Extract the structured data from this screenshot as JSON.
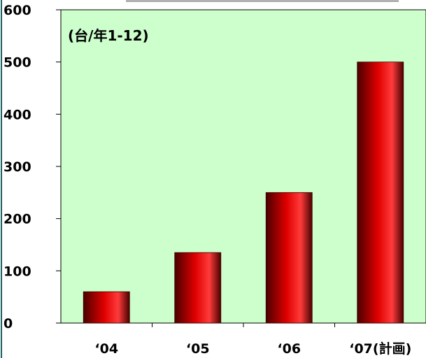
{
  "chart_data": {
    "type": "bar",
    "title": "",
    "unit_label": "(台/年1-12)",
    "xlabel": "",
    "ylabel": "",
    "categories": [
      "‘04",
      "‘05",
      "‘06",
      "‘07(計画)"
    ],
    "series": [
      {
        "values": [
          60,
          135,
          250,
          500
        ]
      }
    ],
    "ylim": [
      0,
      600
    ],
    "yticks": [
      0,
      100,
      200,
      300,
      400,
      500,
      600
    ],
    "grid": false,
    "plot_background": "#ccffcc",
    "bar_color": "#e00000",
    "bar_highlight": "#ff3b3b",
    "bar_shadow": "#4a0000"
  }
}
